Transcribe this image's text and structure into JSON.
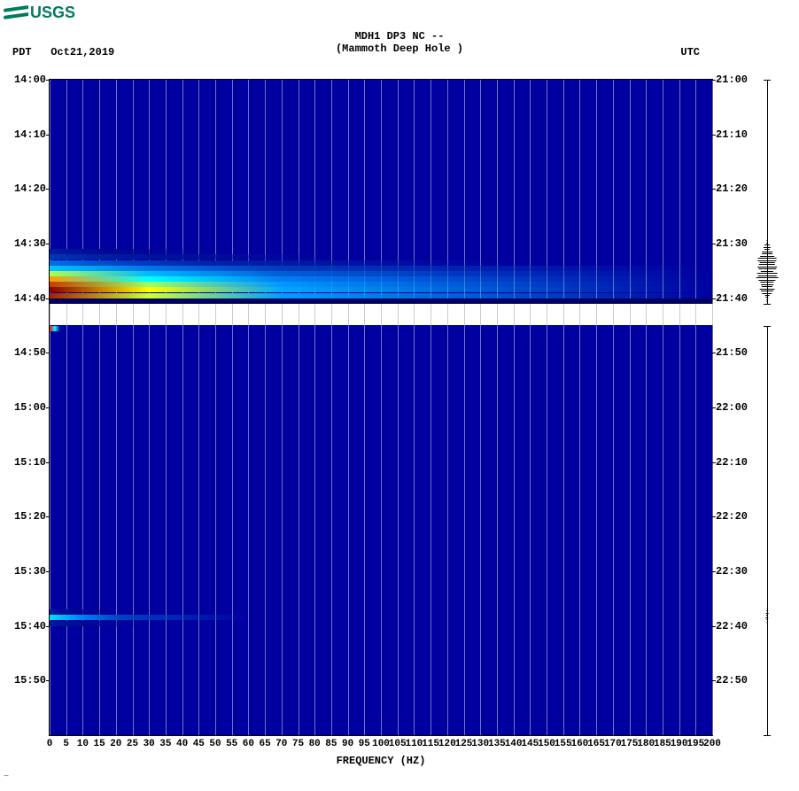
{
  "logo_text": "USGS",
  "title_line1": "MDH1 DP3 NC --",
  "title_line2": "(Mammoth Deep Hole )",
  "tz_left": "PDT",
  "date": "Oct21,2019",
  "tz_right": "UTC",
  "xlabel": "FREQUENCY (HZ)",
  "plot": {
    "type": "spectrogram",
    "bg_color": "#0000a0",
    "grid_color": "#c0c0d0",
    "x_min": 0,
    "x_max": 200,
    "x_tick_step": 5,
    "x_ticks": [
      0,
      5,
      10,
      15,
      20,
      25,
      30,
      35,
      40,
      45,
      50,
      55,
      60,
      65,
      70,
      75,
      80,
      85,
      90,
      95,
      100,
      105,
      110,
      115,
      120,
      125,
      130,
      135,
      140,
      145,
      150,
      155,
      160,
      165,
      170,
      175,
      180,
      185,
      190,
      195,
      200
    ],
    "y_left_ticks": [
      "14:00",
      "14:10",
      "14:20",
      "14:30",
      "14:40",
      "14:50",
      "15:00",
      "15:10",
      "15:20",
      "15:30",
      "15:40",
      "15:50"
    ],
    "y_right_ticks": [
      "21:00",
      "21:10",
      "21:20",
      "21:30",
      "21:40",
      "21:50",
      "22:00",
      "22:10",
      "22:20",
      "22:30",
      "22:40",
      "22:50"
    ],
    "y_minutes_span": 120,
    "gap": {
      "start_min": 41,
      "end_min": 45
    },
    "colormap": [
      {
        "p": 0.0,
        "c": "#00008b"
      },
      {
        "p": 0.25,
        "c": "#008bff"
      },
      {
        "p": 0.45,
        "c": "#00ffff"
      },
      {
        "p": 0.6,
        "c": "#ffff00"
      },
      {
        "p": 0.8,
        "c": "#ff7f00"
      },
      {
        "p": 1.0,
        "c": "#8b0000"
      }
    ],
    "events": [
      {
        "minute_start": 31,
        "minute_end": 40,
        "peak_row_min": 38,
        "max_freq_full": 200,
        "intensity_rows": [
          {
            "m": 31,
            "amp": 0.05,
            "freq_ext": 50
          },
          {
            "m": 32,
            "amp": 0.1,
            "freq_ext": 90
          },
          {
            "m": 33,
            "amp": 0.2,
            "freq_ext": 140
          },
          {
            "m": 34,
            "amp": 0.35,
            "freq_ext": 200
          },
          {
            "m": 35,
            "amp": 0.55,
            "freq_ext": 200
          },
          {
            "m": 36,
            "amp": 0.75,
            "freq_ext": 200
          },
          {
            "m": 37,
            "amp": 0.9,
            "freq_ext": 200
          },
          {
            "m": 38,
            "amp": 1.0,
            "freq_ext": 200
          },
          {
            "m": 39,
            "amp": 0.95,
            "freq_ext": 200
          },
          {
            "m": 40,
            "amp": 0.0,
            "freq_ext": 0
          }
        ]
      },
      {
        "minute_start": 97,
        "minute_end": 99,
        "intensity_rows": [
          {
            "m": 97,
            "amp": 0.05,
            "freq_ext": 20
          },
          {
            "m": 98,
            "amp": 0.4,
            "freq_ext": 60
          },
          {
            "m": 99,
            "amp": 0.05,
            "freq_ext": 30
          }
        ]
      }
    ]
  },
  "waveform": {
    "baseline_color": "#000000",
    "events": [
      {
        "center_min": 35,
        "half_height": 14,
        "max_amp": 28
      },
      {
        "center_min": 98,
        "half_height": 3,
        "max_amp": 4
      }
    ]
  },
  "title_fontsize": 12,
  "label_fontsize": 12,
  "font_family": "Courier New"
}
